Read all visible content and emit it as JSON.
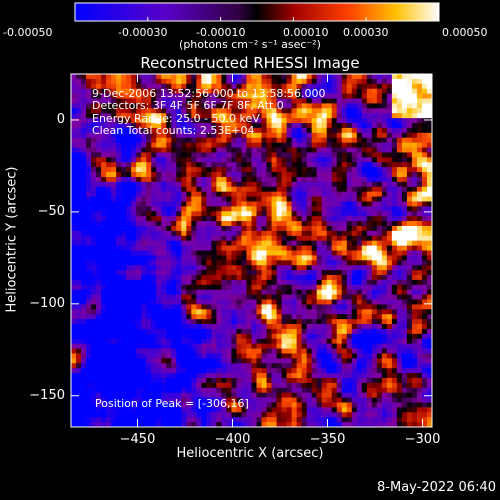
{
  "colorbar": {
    "tick_labels": [
      "-0.00050",
      "-0.00030",
      "-0.00010",
      "0.00010",
      "0.00030",
      "0.00050"
    ],
    "range": [
      -0.0005,
      0.0005
    ],
    "units_text": "(photons cm⁻² s⁻¹ asec⁻²)"
  },
  "chart_data": {
    "type": "heatmap",
    "title": "Reconstructed RHESSI Image",
    "xlabel": "Heliocentric X (arcsec)",
    "ylabel": "Heliocentric Y (arcsec)",
    "xlim": [
      -485,
      -295
    ],
    "ylim": [
      -167,
      25
    ],
    "x_ticks": [
      -450,
      -400,
      -350,
      -300
    ],
    "y_ticks": [
      0,
      -50,
      -100,
      -150
    ],
    "x_tick_labels": [
      "−450",
      "−400",
      "−350",
      "−300"
    ],
    "y_tick_labels": [
      "0",
      "−50",
      "−100",
      "−150"
    ],
    "colormap": [
      "#0000ff",
      "#5000c8",
      "#8000a0",
      "#000000",
      "#a00000",
      "#ff5000",
      "#ffc000",
      "#ffffff"
    ],
    "annotations": [
      "9-Dec-2006 13:52:56.000 to 13:58:56.000",
      "Detectors: 3F 4F 5F 6F 7F 8F, Att 0",
      "Energy Range: 25.0 - 50.0 keV",
      "Clean     Total counts: 2.53E+04"
    ],
    "peak_label": "Position of Peak = [-306,16]",
    "peak_position": [
      -306,
      16
    ]
  },
  "footer": {
    "date": "8-May-2022 06:40"
  }
}
